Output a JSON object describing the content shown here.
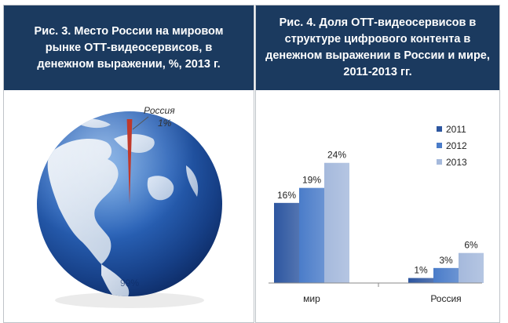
{
  "colors": {
    "header_bg": "#1b3a5f",
    "series_2011": "#2d56a0",
    "series_2012": "#4a7cc9",
    "series_2013": "#a5b9dc",
    "russia_slice": "#c0392b"
  },
  "left_panel": {
    "title": "Рис.  3. Место России на мировом рынке ОТТ-видеосервисов, в денежном выражении, %, 2013 г."
  },
  "right_panel": {
    "title": "Рис. 4. Доля ОТТ-видеосервисов в структуре цифрового контента в денежном выражении в России и мире, 2011-2013 гг."
  },
  "chart_data": [
    {
      "type": "pie",
      "title": "Рис.  3. Место России на мировом рынке ОТТ-видеосервисов, в денежном выражении, %, 2013 г.",
      "slices": [
        {
          "name": "Россия",
          "value": 1,
          "label": "1%"
        },
        {
          "name": "",
          "value": 99,
          "label": "99%"
        }
      ],
      "style": "globe"
    },
    {
      "type": "bar",
      "title": "Рис. 4. Доля ОТТ-видеосервисов в структуре цифрового контента в денежном выражении в России и мире, 2011-2013 гг.",
      "categories": [
        "мир",
        "Россия"
      ],
      "series": [
        {
          "name": "2011",
          "values": [
            16,
            1
          ],
          "labels": [
            "16%",
            "1%"
          ]
        },
        {
          "name": "2012",
          "values": [
            19,
            3
          ],
          "labels": [
            "19%",
            "3%"
          ]
        },
        {
          "name": "2013",
          "values": [
            24,
            6
          ],
          "labels": [
            "24%",
            "6%"
          ]
        }
      ],
      "ylim": [
        0,
        30
      ],
      "legend": "top-right",
      "grid": false
    }
  ]
}
